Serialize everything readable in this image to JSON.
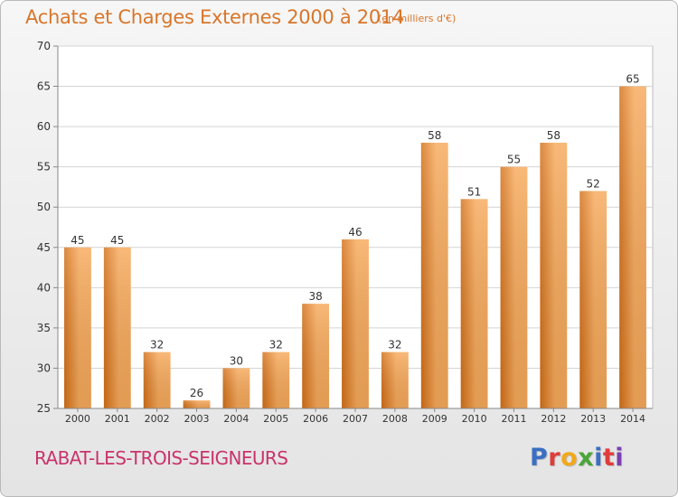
{
  "header": {
    "title": "Achats et Charges Externes 2000 à 2014",
    "subtitle": "(en milliers d'€)"
  },
  "footer": {
    "town": "RABAT-LES-TROIS-SEIGNEURS",
    "brand": "Proxiti",
    "brand_colors": [
      "#3a6fc4",
      "#e03c3c",
      "#f2a81d",
      "#4aa53a",
      "#3a6fc4",
      "#e03c3c",
      "#7a3fb0"
    ]
  },
  "chart_data": {
    "type": "bar",
    "title": "Achats et Charges Externes 2000 à 2014",
    "subtitle": "(en milliers d'€)",
    "xlabel": "",
    "ylabel": "",
    "categories": [
      "2000",
      "2001",
      "2002",
      "2003",
      "2004",
      "2005",
      "2006",
      "2007",
      "2008",
      "2009",
      "2010",
      "2011",
      "2012",
      "2013",
      "2014"
    ],
    "values": [
      45,
      45,
      32,
      26,
      30,
      32,
      38,
      46,
      32,
      58,
      51,
      55,
      58,
      52,
      65
    ],
    "ylim": [
      25,
      70
    ],
    "yticks": [
      25,
      30,
      35,
      40,
      45,
      50,
      55,
      60,
      65,
      70
    ],
    "grid": true,
    "legend": "none",
    "colors": {
      "bar_light": "#f7a95a",
      "bar_dark": "#d36f17",
      "grid": "#d4d4d4",
      "axis_text": "#333333",
      "plot_background": "#ffffff"
    }
  }
}
